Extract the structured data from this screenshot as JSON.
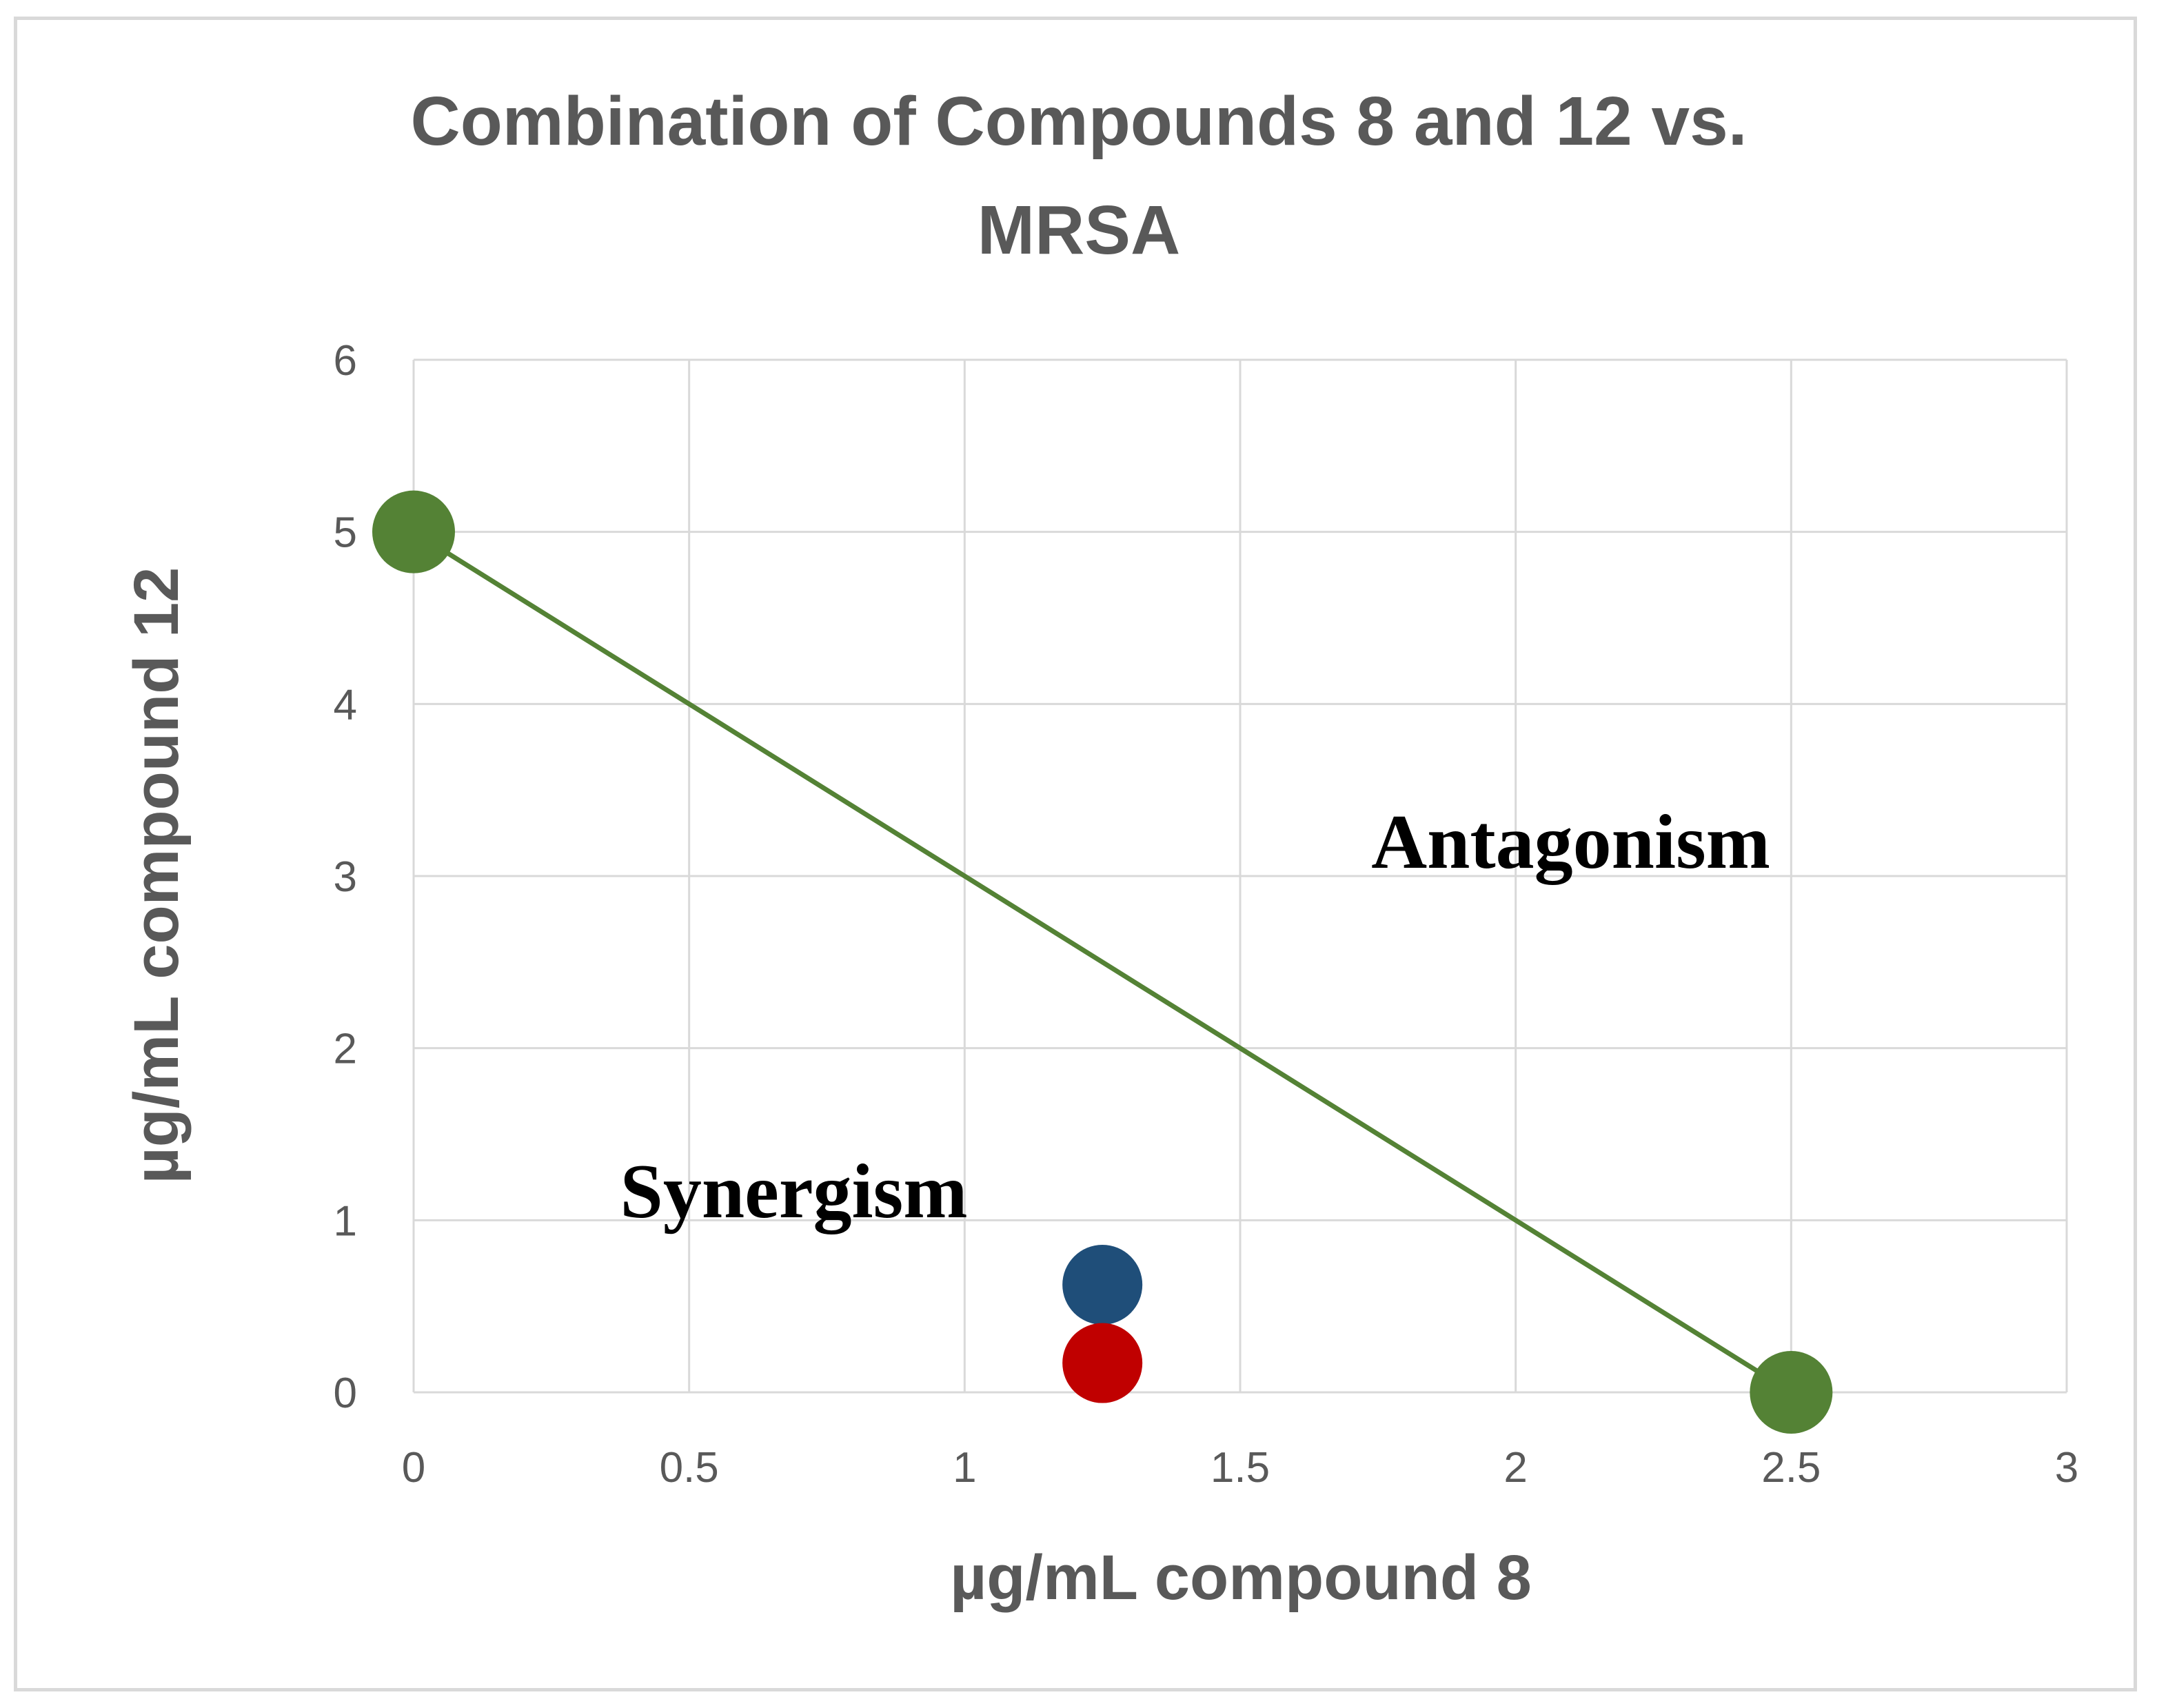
{
  "chart_data": {
    "type": "scatter",
    "title_lines": [
      "Combination of Compounds 8 and 12 vs.",
      "MRSA"
    ],
    "xlabel": "µg/mL compound 8",
    "ylabel": "µg/mL compound 12",
    "xlim": [
      0,
      3
    ],
    "ylim": [
      0,
      6
    ],
    "x_ticks": [
      "0",
      "0.5",
      "1",
      "1.5",
      "2",
      "2.5",
      "3"
    ],
    "y_ticks": [
      "0",
      "1",
      "2",
      "3",
      "4",
      "5",
      "6"
    ],
    "grid": true,
    "colors": {
      "isobole": "#548235",
      "blue_point": "#1f4e79",
      "red_point": "#c00000",
      "text": "#595959"
    },
    "series": [
      {
        "type": "line",
        "color": "#548235",
        "points": [
          {
            "x": 0,
            "y": 5
          },
          {
            "x": 2.5,
            "y": 0
          }
        ]
      },
      {
        "type": "scatter",
        "color": "#1f4e79",
        "points": [
          {
            "x": 1.25,
            "y": 0.625
          }
        ]
      },
      {
        "type": "scatter",
        "color": "#c00000",
        "points": [
          {
            "x": 1.25,
            "y": 0.17
          }
        ]
      }
    ],
    "annotations": [
      {
        "text": "Antagonism",
        "x": 2.1,
        "y": 3.2
      },
      {
        "text": "Synergism",
        "x": 0.69,
        "y": 1.17
      }
    ]
  }
}
